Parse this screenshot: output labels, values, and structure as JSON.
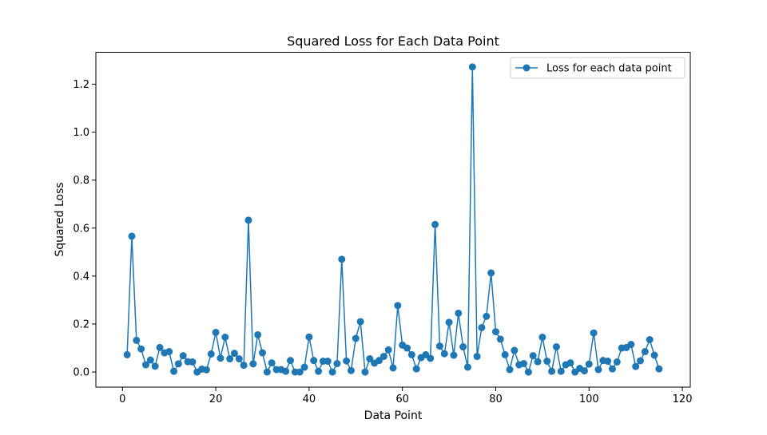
{
  "chart_data": {
    "type": "line",
    "title": "Squared Loss for Each Data Point",
    "xlabel": "Data Point",
    "ylabel": "Squared Loss",
    "xlim": [
      -5.7,
      121.7
    ],
    "ylim": [
      -0.063,
      1.333
    ],
    "xticks": [
      0,
      20,
      40,
      60,
      80,
      100,
      120
    ],
    "yticks": [
      0.0,
      0.2,
      0.4,
      0.6,
      0.8,
      1.0,
      1.2
    ],
    "xtick_labels": [
      "0",
      "20",
      "40",
      "60",
      "80",
      "100",
      "120"
    ],
    "ytick_labels": [
      "0.0",
      "0.2",
      "0.4",
      "0.6",
      "0.8",
      "1.0",
      "1.2"
    ],
    "grid": false,
    "legend_position": "top-right",
    "series": [
      {
        "name": "Loss for each data point",
        "color": "#1f77b4",
        "marker": "circle",
        "x": [
          1,
          2,
          3,
          4,
          5,
          6,
          7,
          8,
          9,
          10,
          11,
          12,
          13,
          14,
          15,
          16,
          17,
          18,
          19,
          20,
          21,
          22,
          23,
          24,
          25,
          26,
          27,
          28,
          29,
          30,
          31,
          32,
          33,
          34,
          35,
          36,
          37,
          38,
          39,
          40,
          41,
          42,
          43,
          44,
          45,
          46,
          47,
          48,
          49,
          50,
          51,
          52,
          53,
          54,
          55,
          56,
          57,
          58,
          59,
          60,
          61,
          62,
          63,
          64,
          65,
          66,
          67,
          68,
          69,
          70,
          71,
          72,
          73,
          74,
          75,
          76,
          77,
          78,
          79,
          80,
          81,
          82,
          83,
          84,
          85,
          86,
          87,
          88,
          89,
          90,
          91,
          92,
          93,
          94,
          95,
          96,
          97,
          98,
          99,
          100,
          101,
          102,
          103,
          104,
          105,
          106,
          107,
          108,
          109,
          110,
          111,
          112,
          113,
          114,
          115
        ],
        "values": [
          0.072,
          0.566,
          0.132,
          0.096,
          0.03,
          0.05,
          0.024,
          0.102,
          0.08,
          0.085,
          0.003,
          0.034,
          0.068,
          0.043,
          0.042,
          0.0,
          0.012,
          0.009,
          0.075,
          0.165,
          0.058,
          0.145,
          0.055,
          0.078,
          0.055,
          0.028,
          0.633,
          0.034,
          0.155,
          0.08,
          0.0,
          0.038,
          0.01,
          0.01,
          0.003,
          0.048,
          0.0,
          0.0,
          0.02,
          0.146,
          0.048,
          0.003,
          0.045,
          0.045,
          0.0,
          0.035,
          0.47,
          0.046,
          0.006,
          0.14,
          0.21,
          0.0,
          0.055,
          0.037,
          0.048,
          0.065,
          0.092,
          0.017,
          0.277,
          0.112,
          0.1,
          0.072,
          0.013,
          0.06,
          0.072,
          0.057,
          0.615,
          0.108,
          0.076,
          0.207,
          0.07,
          0.245,
          0.105,
          0.02,
          1.272,
          0.065,
          0.185,
          0.232,
          0.413,
          0.168,
          0.137,
          0.072,
          0.01,
          0.09,
          0.03,
          0.035,
          0.0,
          0.068,
          0.043,
          0.145,
          0.045,
          0.003,
          0.105,
          0.003,
          0.03,
          0.038,
          0.0,
          0.015,
          0.005,
          0.033,
          0.163,
          0.01,
          0.048,
          0.045,
          0.013,
          0.042,
          0.1,
          0.102,
          0.115,
          0.023,
          0.047,
          0.085,
          0.135,
          0.07,
          0.013
        ]
      }
    ]
  }
}
